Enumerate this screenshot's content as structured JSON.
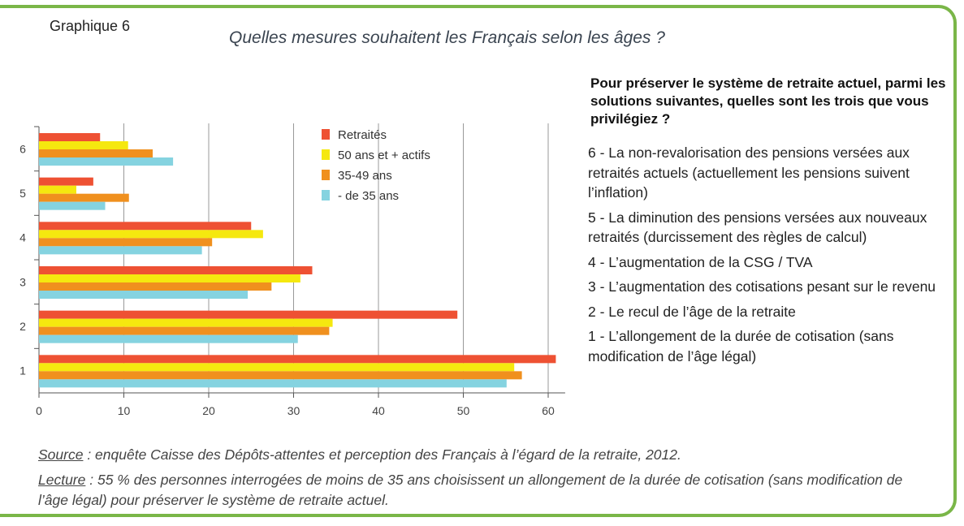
{
  "header": {
    "graph_number": "Graphique 6",
    "title": "Quelles mesures souhaitent les Français selon les âges ?"
  },
  "question": "Pour préserver le système de retraite actuel, parmi les solutions suivantes, quelles sont les trois que vous privilégiez ?",
  "measures": [
    "6 - La non-revalorisation des pensions versées aux retraités actuels (actuellement les pensions suivent l’inflation)",
    "5 - La diminution des pensions versées aux nouveaux retraités (durcissement des règles de calcul)",
    "4 - L’augmentation de la CSG / TVA",
    "3 - L’augmentation des cotisations pesant sur le revenu",
    "2 - Le recul de l’âge de la retraite",
    "1 - L’allongement de la durée de cotisation (sans modification de l’âge légal)"
  ],
  "notes": {
    "source_label": "Source",
    "source_text": " : enquête Caisse des Dépôts-attentes et perception des Français à l’égard de la retraite, 2012.",
    "reading_label": "Lecture",
    "reading_text": " : 55 % des personnes interrogées de moins de 35 ans choisissent un allongement de la durée de cotisation (sans modification de l’âge légal) pour préserver le système de retraite actuel."
  },
  "chart_data": {
    "type": "bar",
    "orientation": "horizontal",
    "categories": [
      "6",
      "5",
      "4",
      "3",
      "2",
      "1"
    ],
    "series": [
      {
        "name": "Retraités",
        "color": "#ee5133",
        "values": [
          7.2,
          6.4,
          25.0,
          32.2,
          49.3,
          60.9
        ]
      },
      {
        "name": "50 ans et + actifs",
        "color": "#f5e80f",
        "values": [
          10.5,
          4.4,
          26.4,
          30.8,
          34.6,
          56.0
        ]
      },
      {
        "name": "35-49 ans",
        "color": "#f0901e",
        "values": [
          13.4,
          10.6,
          20.4,
          27.4,
          34.2,
          56.9
        ]
      },
      {
        "name": "- de 35 ans",
        "color": "#85d3e0",
        "values": [
          15.8,
          7.8,
          19.2,
          24.6,
          30.5,
          55.1
        ]
      }
    ],
    "xticks": [
      0,
      10,
      20,
      30,
      40,
      50,
      60
    ],
    "xlim": [
      0,
      62
    ],
    "grid": true,
    "legend": "top-right"
  }
}
